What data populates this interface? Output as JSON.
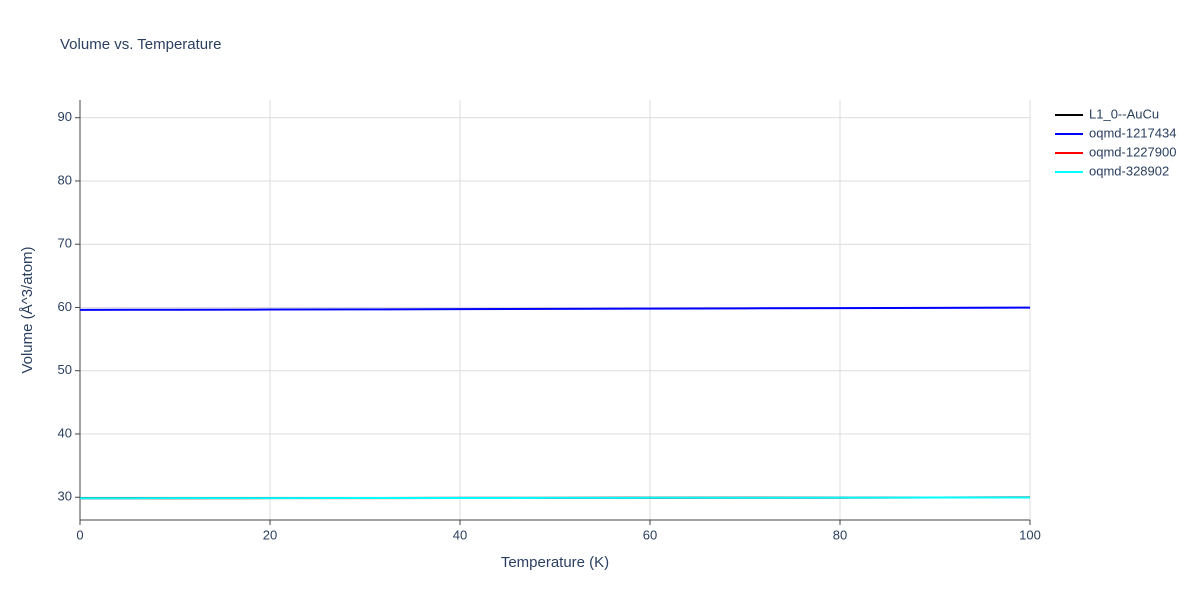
{
  "chart_data": {
    "type": "line",
    "title": "Volume vs. Temperature",
    "x_label": "Temperature (K)",
    "y_label": "Volume (Å^3/atom)",
    "x": [
      0,
      10,
      20,
      30,
      40,
      50,
      60,
      70,
      80,
      90,
      100
    ],
    "series": [
      {
        "name": "L1_0--AuCu",
        "color": "#000000",
        "values": [
          29.85,
          29.86,
          29.87,
          29.88,
          29.89,
          29.9,
          29.92,
          29.93,
          29.94,
          29.96,
          29.97
        ]
      },
      {
        "name": "oqmd-1217434",
        "color": "#0000ff",
        "values": [
          59.62,
          59.64,
          59.67,
          59.7,
          59.74,
          59.78,
          59.82,
          59.86,
          59.9,
          59.94,
          59.98
        ]
      },
      {
        "name": "oqmd-1227900",
        "color": "#ff0000",
        "values": [
          29.83,
          29.84,
          29.85,
          29.86,
          29.87,
          29.88,
          29.9,
          29.91,
          29.93,
          29.95,
          29.97
        ]
      },
      {
        "name": "oqmd-328902",
        "color": "#00ffff",
        "values": [
          29.84,
          29.85,
          29.86,
          29.87,
          29.88,
          29.89,
          29.91,
          29.92,
          29.93,
          29.95,
          29.96
        ]
      }
    ],
    "xlim": [
      0,
      100
    ],
    "xticks": [
      0,
      20,
      40,
      60,
      80,
      100
    ],
    "ylim": [
      26.4,
      92.8
    ],
    "yticks": [
      30,
      40,
      50,
      60,
      70,
      80,
      90
    ],
    "grid": true,
    "legend": "top-right"
  }
}
